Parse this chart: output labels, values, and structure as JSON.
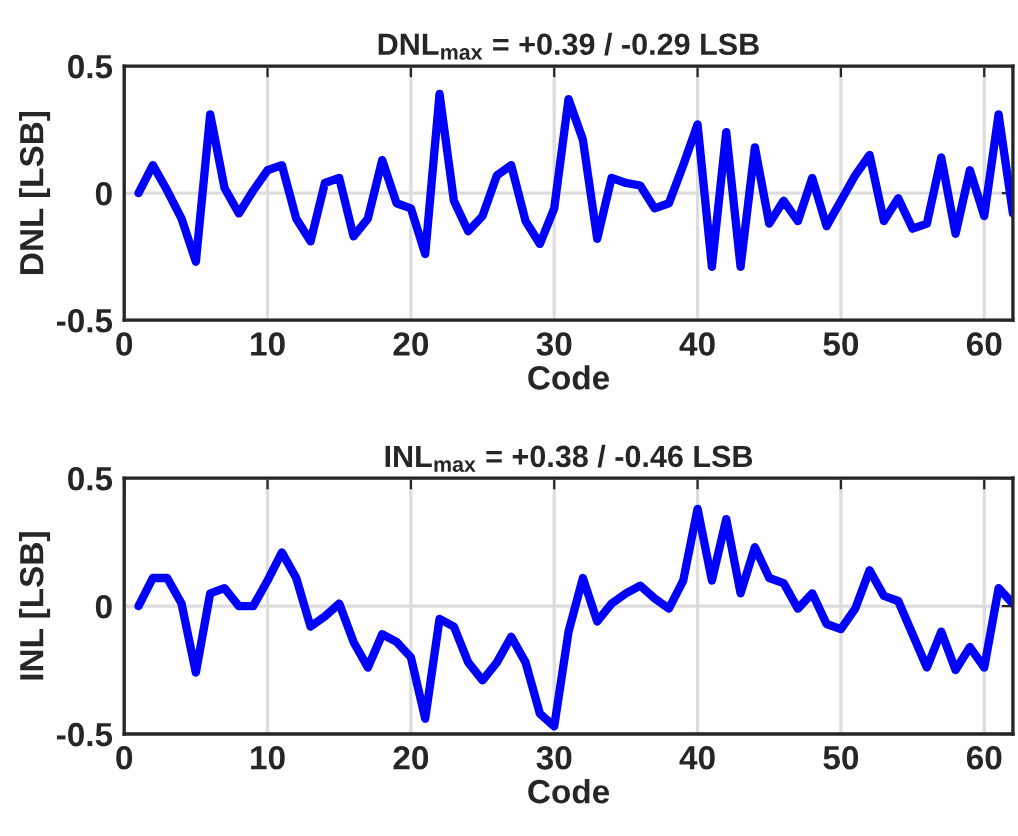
{
  "chart_data": [
    {
      "type": "line",
      "title": "DNL$_{max}$ = +0.39 / -0.29 LSB",
      "xlabel": "Code",
      "ylabel": "DNL [LSB]",
      "x": [
        1,
        2,
        3,
        4,
        5,
        6,
        7,
        8,
        9,
        10,
        11,
        12,
        13,
        14,
        15,
        16,
        17,
        18,
        19,
        20,
        21,
        22,
        23,
        24,
        25,
        26,
        27,
        28,
        29,
        30,
        31,
        32,
        33,
        34,
        35,
        36,
        37,
        38,
        39,
        40,
        41,
        42,
        43,
        44,
        45,
        46,
        47,
        48,
        49,
        50,
        51,
        52,
        53,
        54,
        55,
        56,
        57,
        58,
        59,
        60,
        61,
        62
      ],
      "series": [
        {
          "color": "#0000ff",
          "values": [
            0,
            0.11,
            0.01,
            -0.1,
            -0.27,
            0.31,
            0.02,
            -0.08,
            0.01,
            0.09,
            0.11,
            -0.1,
            -0.19,
            0.04,
            0.06,
            -0.17,
            -0.1,
            0.13,
            -0.04,
            -0.06,
            -0.24,
            0.39,
            -0.03,
            -0.15,
            -0.09,
            0.07,
            0.11,
            -0.11,
            -0.2,
            -0.06,
            0.37,
            0.21,
            -0.18,
            0.06,
            0.04,
            0.03,
            -0.06,
            -0.04,
            0.11,
            0.27,
            -0.29,
            0.24,
            -0.29,
            0.18,
            -0.12,
            -0.03,
            -0.11,
            0.06,
            -0.13,
            -0.03,
            0.07,
            0.15,
            -0.11,
            -0.02,
            -0.14,
            -0.12,
            0.14,
            -0.16,
            0.09,
            -0.09,
            0.31,
            -0.08
          ]
        }
      ],
      "xlim": [
        0,
        62
      ],
      "ylim": [
        -0.5,
        0.5
      ],
      "xticks": [
        0,
        10,
        20,
        30,
        40,
        50,
        60
      ],
      "yticks": [
        -0.5,
        0,
        0.5
      ],
      "grid": true,
      "line_style": "solid",
      "marker": "none"
    },
    {
      "type": "line",
      "title": "INL$_{max}$ = +0.38 / -0.46 LSB",
      "xlabel": "Code",
      "ylabel": "INL [LSB]",
      "x": [
        1,
        2,
        3,
        4,
        5,
        6,
        7,
        8,
        9,
        10,
        11,
        12,
        13,
        14,
        15,
        16,
        17,
        18,
        19,
        20,
        21,
        22,
        23,
        24,
        25,
        26,
        27,
        28,
        29,
        30,
        31,
        32,
        33,
        34,
        35,
        36,
        37,
        38,
        39,
        40,
        41,
        42,
        43,
        44,
        45,
        46,
        47,
        48,
        49,
        50,
        51,
        52,
        53,
        54,
        55,
        56,
        57,
        58,
        59,
        60,
        61,
        62
      ],
      "series": [
        {
          "color": "#0000ff",
          "values": [
            0,
            0.11,
            0.11,
            0.01,
            -0.26,
            0.05,
            0.07,
            0,
            0,
            0.1,
            0.21,
            0.11,
            -0.08,
            -0.04,
            0.01,
            -0.14,
            -0.24,
            -0.11,
            -0.14,
            -0.2,
            -0.44,
            -0.05,
            -0.08,
            -0.22,
            -0.29,
            -0.22,
            -0.12,
            -0.22,
            -0.42,
            -0.47,
            -0.1,
            0.11,
            -0.06,
            0.01,
            0.05,
            0.08,
            0.03,
            -0.01,
            0.1,
            0.38,
            0.1,
            0.34,
            0.05,
            0.23,
            0.11,
            0.09,
            -0.01,
            0.05,
            -0.07,
            -0.09,
            -0.01,
            0.14,
            0.04,
            0.02,
            -0.11,
            -0.24,
            -0.1,
            -0.25,
            -0.16,
            -0.24,
            0.07,
            0.01
          ]
        }
      ],
      "xlim": [
        0,
        62
      ],
      "ylim": [
        -0.5,
        0.5
      ],
      "xticks": [
        0,
        10,
        20,
        30,
        40,
        50,
        60
      ],
      "yticks": [
        -0.5,
        0,
        0.5
      ],
      "grid": true,
      "line_style": "solid",
      "marker": "none"
    }
  ]
}
